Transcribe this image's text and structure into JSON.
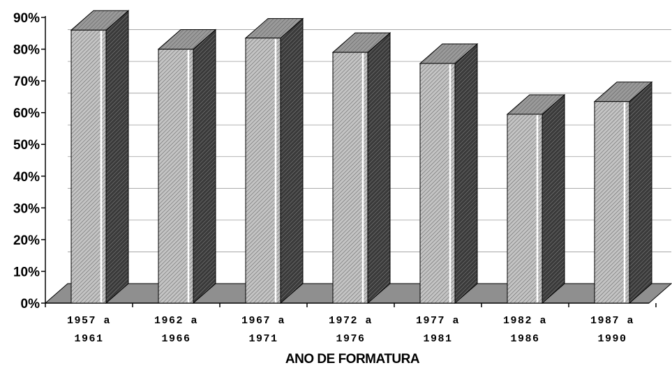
{
  "chart_data": {
    "type": "bar",
    "three_d": true,
    "categories": [
      [
        "1957 a",
        "1961"
      ],
      [
        "1962 a",
        "1966"
      ],
      [
        "1967 a",
        "1971"
      ],
      [
        "1972 a",
        "1976"
      ],
      [
        "1977 a",
        "1981"
      ],
      [
        "1982 a",
        "1986"
      ],
      [
        "1987 a",
        "1990"
      ]
    ],
    "values": [
      86,
      80,
      83.5,
      79,
      75.5,
      59.5,
      63.5
    ],
    "ylim": [
      0,
      90
    ],
    "yticks": [
      "0%",
      "10%",
      "20%",
      "30%",
      "40%",
      "50%",
      "60%",
      "70%",
      "80%",
      "90%"
    ],
    "xlabel": "ANO DE FORMATURA",
    "ylabel": "",
    "grid": true,
    "colors": {
      "bar_front": "#b4b4b4",
      "bar_side": "#505050",
      "bar_top": "#8c8c8c",
      "floor": "#8f8f8f"
    }
  }
}
